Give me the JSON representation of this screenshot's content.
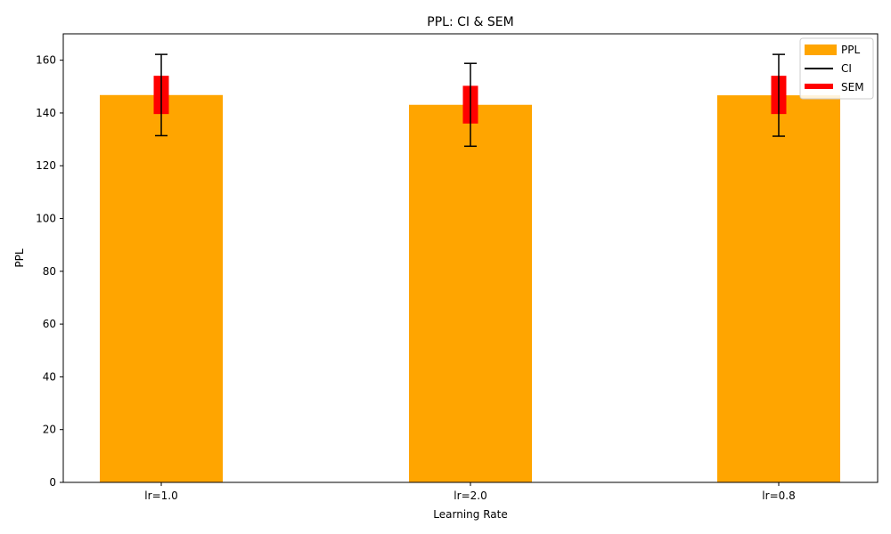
{
  "chart_data": {
    "type": "bar",
    "title": "PPL: CI & SEM",
    "xlabel": "Learning Rate",
    "ylabel": "PPL",
    "categories": [
      "lr=1.0",
      "lr=2.0",
      "lr=0.8"
    ],
    "ylim": [
      0,
      170
    ],
    "yticks": [
      0,
      20,
      40,
      60,
      80,
      100,
      120,
      140,
      160
    ],
    "grid": false,
    "legend_position": "top-right",
    "series": [
      {
        "name": "PPL",
        "type": "bar",
        "color": "#ffa500",
        "values": [
          146.8,
          143.1,
          146.7
        ]
      },
      {
        "name": "CI",
        "type": "errorbar",
        "color": "#000000",
        "low": [
          131.4,
          127.4,
          131.2
        ],
        "high": [
          162.2,
          158.8,
          162.2
        ]
      },
      {
        "name": "SEM",
        "type": "errorbar",
        "color": "#ff0000",
        "low": [
          139.6,
          136.0,
          139.6
        ],
        "high": [
          154.1,
          150.3,
          154.1
        ]
      }
    ]
  }
}
